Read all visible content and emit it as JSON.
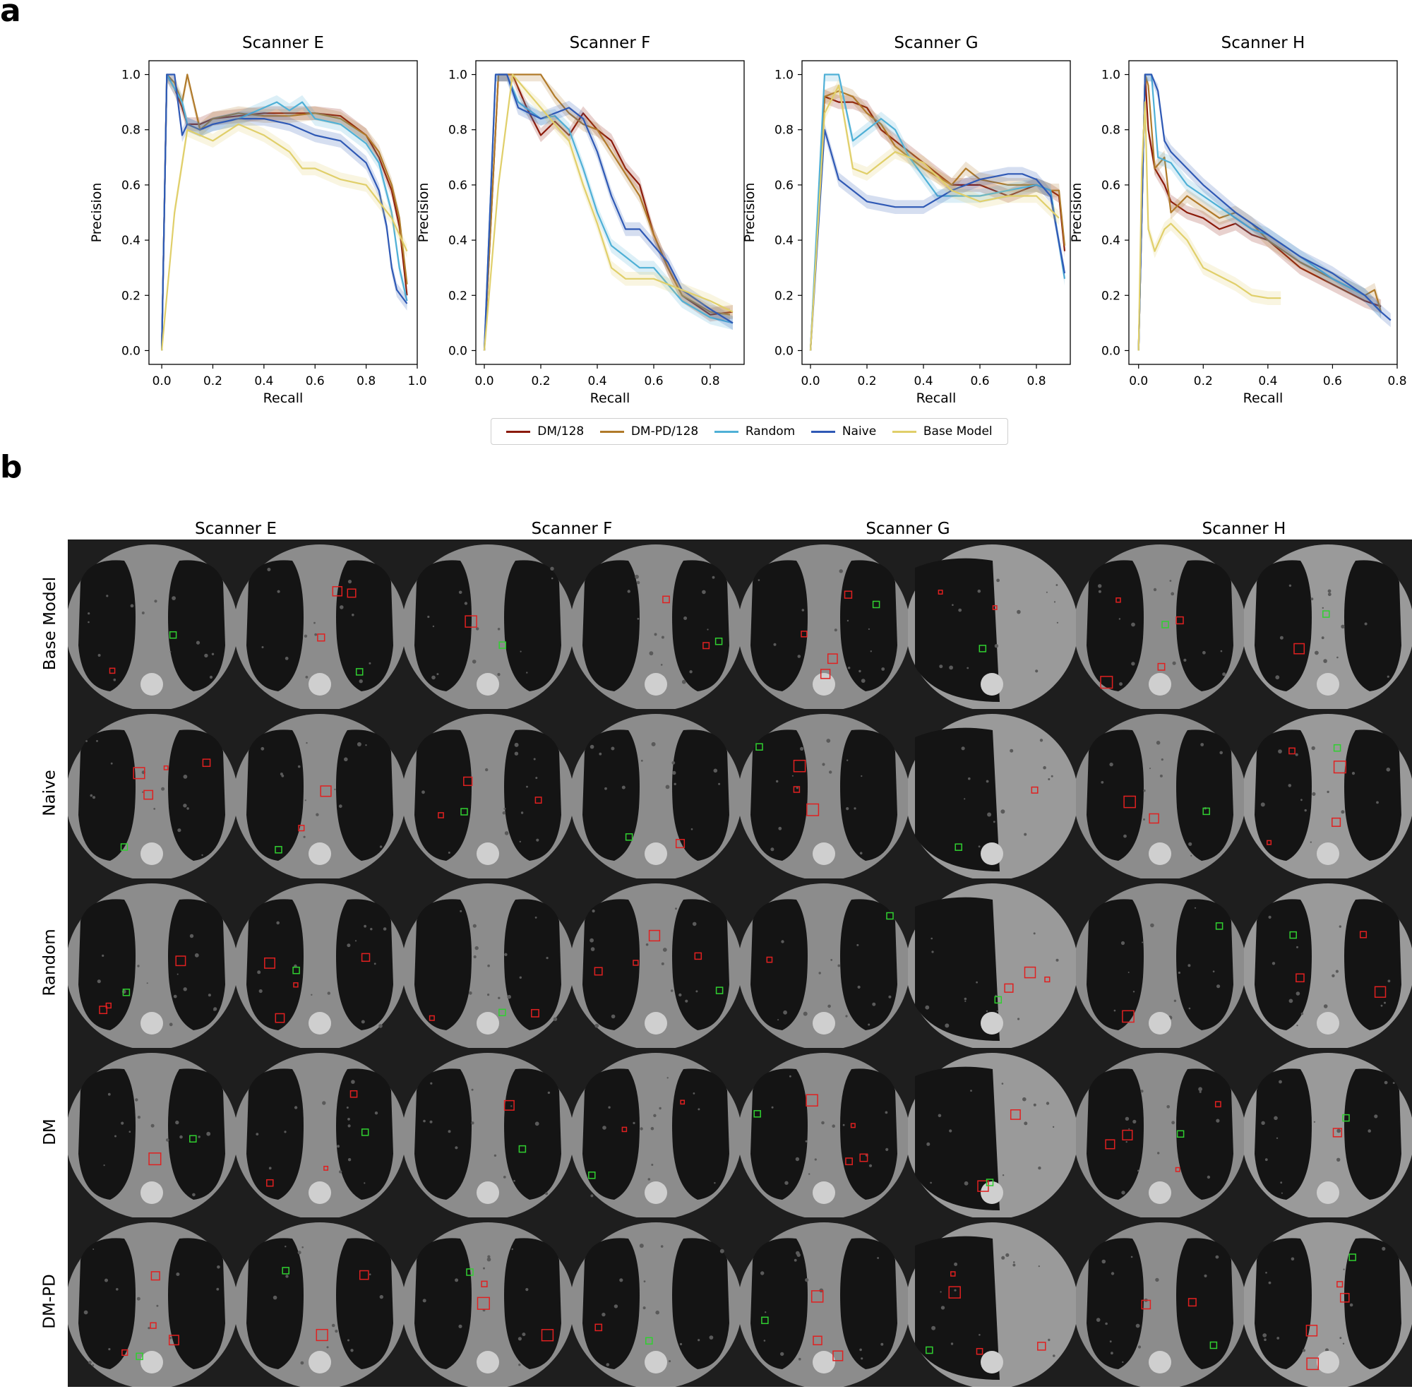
{
  "panel_a": {
    "letter": "a"
  },
  "panel_b": {
    "letter": "b"
  },
  "chart_data": [
    {
      "type": "line",
      "title": "Scanner E",
      "xlabel": "Recall",
      "ylabel": "Precision",
      "xlim": [
        -0.05,
        1.0
      ],
      "ylim": [
        -0.05,
        1.05
      ],
      "xticks": [
        "0.0",
        "0.2",
        "0.4",
        "0.6",
        "0.8",
        "1.0"
      ],
      "yticks": [
        "0.0",
        "0.2",
        "0.4",
        "0.6",
        "0.8",
        "1.0"
      ],
      "series": [
        {
          "name": "DM/128",
          "x": [
            0.0,
            0.02,
            0.05,
            0.08,
            0.1,
            0.15,
            0.2,
            0.3,
            0.4,
            0.5,
            0.6,
            0.7,
            0.8,
            0.85,
            0.9,
            0.93,
            0.96
          ],
          "y": [
            0.0,
            1.0,
            0.95,
            0.88,
            0.82,
            0.82,
            0.84,
            0.85,
            0.86,
            0.86,
            0.86,
            0.85,
            0.78,
            0.7,
            0.58,
            0.45,
            0.2
          ]
        },
        {
          "name": "DM-PD/128",
          "x": [
            0.0,
            0.02,
            0.05,
            0.08,
            0.1,
            0.15,
            0.2,
            0.3,
            0.4,
            0.5,
            0.6,
            0.7,
            0.8,
            0.85,
            0.9,
            0.93,
            0.96
          ],
          "y": [
            0.0,
            1.0,
            0.97,
            0.9,
            1.0,
            0.8,
            0.84,
            0.86,
            0.85,
            0.85,
            0.86,
            0.84,
            0.78,
            0.72,
            0.6,
            0.48,
            0.24
          ]
        },
        {
          "name": "Random",
          "x": [
            0.0,
            0.02,
            0.05,
            0.08,
            0.1,
            0.15,
            0.2,
            0.3,
            0.4,
            0.45,
            0.5,
            0.55,
            0.6,
            0.7,
            0.8,
            0.85,
            0.9,
            0.93,
            0.96
          ],
          "y": [
            0.0,
            1.0,
            0.95,
            0.9,
            0.82,
            0.8,
            0.82,
            0.84,
            0.88,
            0.9,
            0.87,
            0.9,
            0.84,
            0.82,
            0.75,
            0.68,
            0.5,
            0.3,
            0.18
          ]
        },
        {
          "name": "Naive",
          "x": [
            0.0,
            0.02,
            0.05,
            0.08,
            0.1,
            0.15,
            0.2,
            0.3,
            0.4,
            0.5,
            0.6,
            0.7,
            0.8,
            0.85,
            0.88,
            0.9,
            0.92,
            0.96
          ],
          "y": [
            0.0,
            1.0,
            1.0,
            0.78,
            0.82,
            0.8,
            0.82,
            0.84,
            0.84,
            0.82,
            0.78,
            0.76,
            0.68,
            0.58,
            0.45,
            0.3,
            0.22,
            0.17
          ]
        },
        {
          "name": "Base Model",
          "x": [
            0.0,
            0.05,
            0.1,
            0.2,
            0.3,
            0.4,
            0.5,
            0.55,
            0.6,
            0.7,
            0.8,
            0.9,
            0.96
          ],
          "y": [
            0.0,
            0.5,
            0.8,
            0.76,
            0.82,
            0.78,
            0.72,
            0.66,
            0.66,
            0.62,
            0.6,
            0.48,
            0.36
          ]
        }
      ]
    },
    {
      "type": "line",
      "title": "Scanner F",
      "xlabel": "Recall",
      "ylabel": "Precision",
      "xlim": [
        -0.03,
        0.92
      ],
      "ylim": [
        -0.05,
        1.05
      ],
      "xticks": [
        "0.0",
        "0.2",
        "0.4",
        "0.6",
        "0.8"
      ],
      "yticks": [
        "0.0",
        "0.2",
        "0.4",
        "0.6",
        "0.8",
        "1.0"
      ],
      "series": [
        {
          "name": "DM/128",
          "x": [
            0.0,
            0.05,
            0.1,
            0.15,
            0.2,
            0.25,
            0.3,
            0.35,
            0.4,
            0.45,
            0.5,
            0.55,
            0.6,
            0.65,
            0.7,
            0.8,
            0.88
          ],
          "y": [
            0.0,
            1.0,
            1.0,
            0.88,
            0.78,
            0.83,
            0.78,
            0.86,
            0.8,
            0.76,
            0.66,
            0.6,
            0.42,
            0.3,
            0.2,
            0.13,
            0.14
          ]
        },
        {
          "name": "DM-PD/128",
          "x": [
            0.0,
            0.05,
            0.1,
            0.2,
            0.25,
            0.3,
            0.35,
            0.4,
            0.45,
            0.5,
            0.55,
            0.6,
            0.65,
            0.7,
            0.8,
            0.87
          ],
          "y": [
            0.0,
            1.0,
            1.0,
            1.0,
            0.92,
            0.86,
            0.82,
            0.8,
            0.72,
            0.64,
            0.56,
            0.42,
            0.3,
            0.2,
            0.14,
            0.13
          ]
        },
        {
          "name": "Random",
          "x": [
            0.0,
            0.04,
            0.08,
            0.12,
            0.2,
            0.25,
            0.3,
            0.35,
            0.4,
            0.45,
            0.5,
            0.55,
            0.6,
            0.7,
            0.8,
            0.88
          ],
          "y": [
            0.0,
            1.0,
            1.0,
            0.9,
            0.84,
            0.85,
            0.8,
            0.66,
            0.5,
            0.38,
            0.34,
            0.3,
            0.3,
            0.18,
            0.12,
            0.1
          ]
        },
        {
          "name": "Naive",
          "x": [
            0.0,
            0.04,
            0.08,
            0.12,
            0.2,
            0.25,
            0.3,
            0.35,
            0.4,
            0.45,
            0.5,
            0.55,
            0.6,
            0.65,
            0.7,
            0.8,
            0.88
          ],
          "y": [
            0.0,
            1.0,
            1.0,
            0.88,
            0.84,
            0.86,
            0.88,
            0.84,
            0.72,
            0.56,
            0.44,
            0.44,
            0.38,
            0.32,
            0.22,
            0.15,
            0.1
          ]
        },
        {
          "name": "Base Model",
          "x": [
            0.0,
            0.05,
            0.1,
            0.2,
            0.3,
            0.35,
            0.4,
            0.45,
            0.5,
            0.6,
            0.7,
            0.8,
            0.88
          ],
          "y": [
            0.0,
            0.6,
            1.0,
            0.88,
            0.76,
            0.6,
            0.46,
            0.3,
            0.26,
            0.26,
            0.22,
            0.18,
            0.14
          ]
        }
      ]
    },
    {
      "type": "line",
      "title": "Scanner G",
      "xlabel": "Recall",
      "ylabel": "Precision",
      "xlim": [
        -0.03,
        0.92
      ],
      "ylim": [
        -0.05,
        1.05
      ],
      "xticks": [
        "0.0",
        "0.2",
        "0.4",
        "0.6",
        "0.8"
      ],
      "yticks": [
        "0.0",
        "0.2",
        "0.4",
        "0.6",
        "0.8",
        "1.0"
      ],
      "series": [
        {
          "name": "DM/128",
          "x": [
            0.0,
            0.05,
            0.1,
            0.15,
            0.2,
            0.25,
            0.3,
            0.4,
            0.5,
            0.6,
            0.7,
            0.8,
            0.85,
            0.88,
            0.9
          ],
          "y": [
            0.0,
            0.92,
            0.9,
            0.9,
            0.88,
            0.8,
            0.76,
            0.68,
            0.6,
            0.6,
            0.56,
            0.6,
            0.58,
            0.56,
            0.36
          ]
        },
        {
          "name": "DM-PD/128",
          "x": [
            0.0,
            0.05,
            0.1,
            0.15,
            0.2,
            0.25,
            0.3,
            0.4,
            0.5,
            0.55,
            0.6,
            0.7,
            0.8,
            0.85,
            0.88,
            0.9
          ],
          "y": [
            0.0,
            0.92,
            0.94,
            0.92,
            0.86,
            0.82,
            0.74,
            0.66,
            0.6,
            0.66,
            0.62,
            0.6,
            0.6,
            0.58,
            0.58,
            0.38
          ]
        },
        {
          "name": "Random",
          "x": [
            0.0,
            0.05,
            0.1,
            0.15,
            0.2,
            0.25,
            0.3,
            0.35,
            0.45,
            0.5,
            0.6,
            0.7,
            0.8,
            0.85,
            0.9
          ],
          "y": [
            0.0,
            1.0,
            1.0,
            0.76,
            0.8,
            0.84,
            0.8,
            0.7,
            0.56,
            0.56,
            0.56,
            0.58,
            0.6,
            0.58,
            0.26
          ]
        },
        {
          "name": "Naive",
          "x": [
            0.0,
            0.05,
            0.1,
            0.15,
            0.2,
            0.3,
            0.4,
            0.5,
            0.6,
            0.7,
            0.75,
            0.8,
            0.85,
            0.9
          ],
          "y": [
            0.0,
            0.8,
            0.62,
            0.58,
            0.54,
            0.52,
            0.52,
            0.58,
            0.62,
            0.64,
            0.64,
            0.62,
            0.56,
            0.28
          ]
        },
        {
          "name": "Base Model",
          "x": [
            0.0,
            0.05,
            0.1,
            0.15,
            0.2,
            0.3,
            0.4,
            0.5,
            0.6,
            0.7,
            0.8,
            0.88
          ],
          "y": [
            0.0,
            0.86,
            0.96,
            0.66,
            0.64,
            0.72,
            0.68,
            0.58,
            0.54,
            0.56,
            0.56,
            0.48
          ]
        }
      ]
    },
    {
      "type": "line",
      "title": "Scanner H",
      "xlabel": "Recall",
      "ylabel": "Precision",
      "xlim": [
        -0.03,
        0.8
      ],
      "ylim": [
        -0.05,
        1.05
      ],
      "xticks": [
        "0.0",
        "0.2",
        "0.4",
        "0.6",
        "0.8"
      ],
      "yticks": [
        "0.0",
        "0.2",
        "0.4",
        "0.6",
        "0.8",
        "1.0"
      ],
      "series": [
        {
          "name": "DM/128",
          "x": [
            0.0,
            0.02,
            0.03,
            0.05,
            0.08,
            0.1,
            0.15,
            0.2,
            0.25,
            0.3,
            0.35,
            0.4,
            0.5,
            0.6,
            0.7,
            0.75
          ],
          "y": [
            0.0,
            1.0,
            0.8,
            0.66,
            0.6,
            0.54,
            0.5,
            0.48,
            0.44,
            0.46,
            0.42,
            0.4,
            0.3,
            0.24,
            0.18,
            0.16
          ]
        },
        {
          "name": "DM-PD/128",
          "x": [
            0.0,
            0.02,
            0.03,
            0.05,
            0.08,
            0.1,
            0.15,
            0.2,
            0.25,
            0.3,
            0.35,
            0.4,
            0.5,
            0.6,
            0.7,
            0.73,
            0.75
          ],
          "y": [
            0.0,
            1.0,
            0.96,
            0.66,
            0.7,
            0.5,
            0.56,
            0.52,
            0.48,
            0.5,
            0.46,
            0.4,
            0.32,
            0.26,
            0.2,
            0.22,
            0.14
          ]
        },
        {
          "name": "Random",
          "x": [
            0.0,
            0.02,
            0.04,
            0.06,
            0.1,
            0.15,
            0.2,
            0.25,
            0.3,
            0.35,
            0.4,
            0.5,
            0.6,
            0.7,
            0.75
          ],
          "y": [
            0.0,
            1.0,
            1.0,
            0.7,
            0.68,
            0.6,
            0.56,
            0.52,
            0.48,
            0.44,
            0.42,
            0.34,
            0.26,
            0.2,
            0.14
          ]
        },
        {
          "name": "Naive",
          "x": [
            0.0,
            0.02,
            0.04,
            0.06,
            0.08,
            0.1,
            0.15,
            0.2,
            0.3,
            0.4,
            0.5,
            0.6,
            0.7,
            0.75,
            0.78
          ],
          "y": [
            0.0,
            1.0,
            1.0,
            0.94,
            0.76,
            0.72,
            0.66,
            0.6,
            0.5,
            0.42,
            0.34,
            0.28,
            0.2,
            0.14,
            0.11
          ]
        },
        {
          "name": "Base Model",
          "x": [
            0.0,
            0.01,
            0.02,
            0.03,
            0.05,
            0.08,
            0.1,
            0.15,
            0.2,
            0.3,
            0.35,
            0.4,
            0.44
          ],
          "y": [
            0.0,
            0.66,
            0.9,
            0.44,
            0.36,
            0.44,
            0.46,
            0.4,
            0.3,
            0.24,
            0.2,
            0.19,
            0.19
          ]
        }
      ]
    }
  ],
  "legend": [
    {
      "label": "DM/128",
      "color": "#8b1a0a"
    },
    {
      "label": "DM-PD/128",
      "color": "#b07a2a"
    },
    {
      "label": "Random",
      "color": "#4fb0d6"
    },
    {
      "label": "Naive",
      "color": "#2f59b5"
    },
    {
      "label": "Base Model",
      "color": "#e0cf6a"
    }
  ],
  "ct_panel": {
    "columns": [
      "Scanner E",
      "Scanner F",
      "Scanner G",
      "Scanner H"
    ],
    "rows": [
      "Base Model",
      "Naive",
      "Random",
      "DM",
      "DM-PD"
    ]
  }
}
